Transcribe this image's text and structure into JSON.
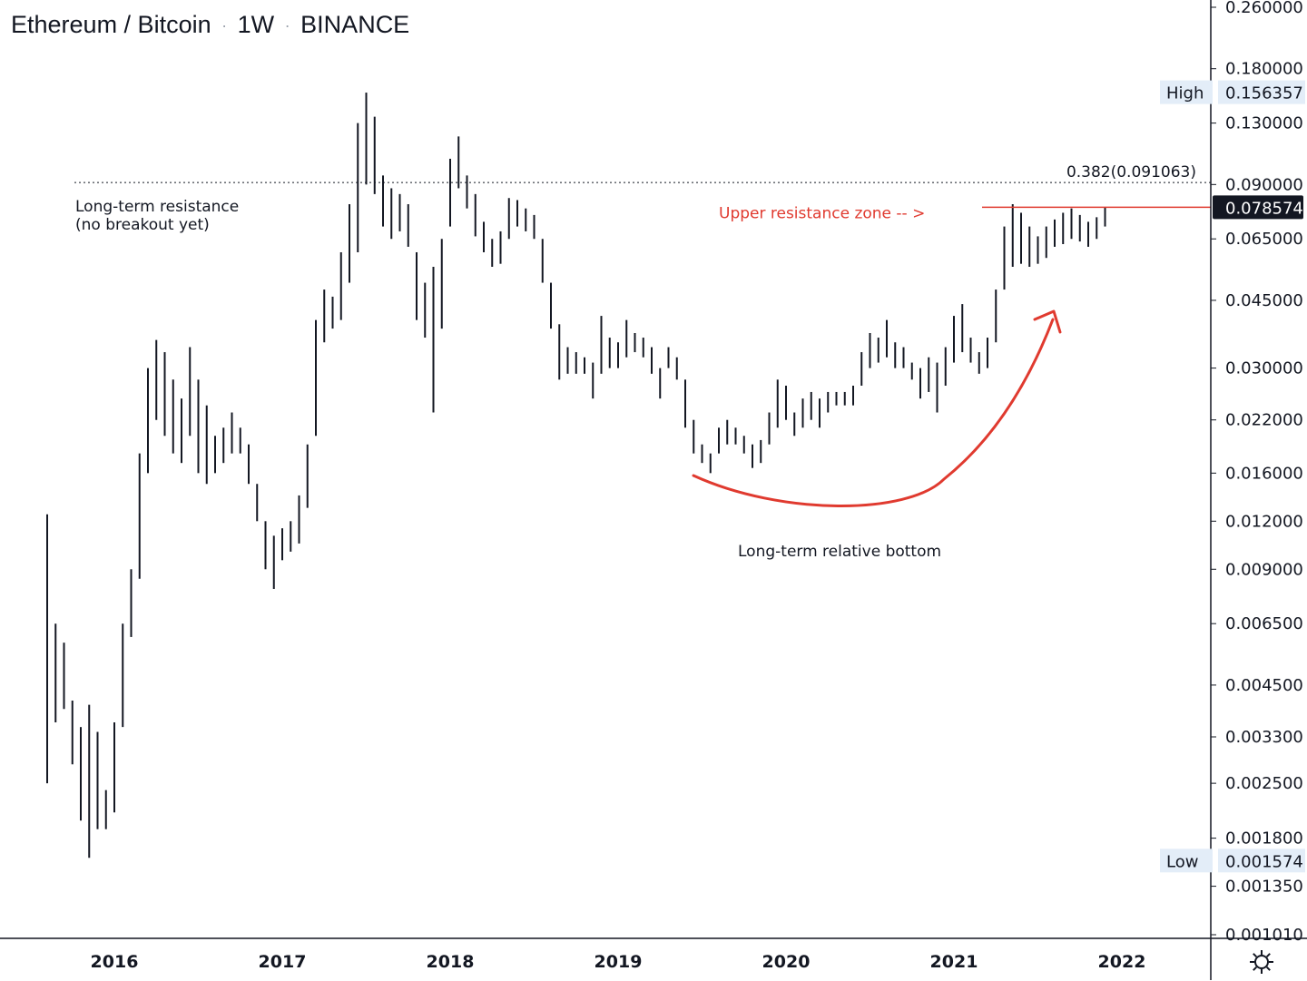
{
  "header": {
    "symbol": "Ethereum / Bitcoin",
    "interval": "1W",
    "exchange": "BINANCE",
    "separator": "·"
  },
  "colors": {
    "bars": "#131722",
    "accent_red": "#e03a2f",
    "axis_line": "#131722",
    "marker_bg": "#e3edf8",
    "price_tag_bg": "#131722"
  },
  "settings": {
    "icon": "settings-icon"
  },
  "chart_data": {
    "type": "ohlc",
    "scale": "log",
    "x_unit": "year",
    "ylim": [
      0.00101,
      0.26
    ],
    "y_ticks": [
      "0.260000",
      "0.180000",
      "0.130000",
      "0.090000",
      "0.065000",
      "0.045000",
      "0.030000",
      "0.022000",
      "0.016000",
      "0.012000",
      "0.009000",
      "0.006500",
      "0.004500",
      "0.003300",
      "0.002500",
      "0.001800",
      "0.001350",
      "0.001010"
    ],
    "x_ticks": [
      "2016",
      "2017",
      "2018",
      "2019",
      "2020",
      "2021",
      "2022"
    ],
    "markers": {
      "high": {
        "label": "High",
        "value": "0.156357"
      },
      "low": {
        "label": "Low",
        "value": "0.001574"
      },
      "last": {
        "value": "0.078574"
      }
    },
    "annotations": {
      "resistance": "Long-term resistance",
      "resistance_note": "(no breakout yet)",
      "fib": "0.382(0.091063)",
      "upper_zone": "Upper resistance zone -- >",
      "bottom": "Long-term relative bottom"
    },
    "levels": {
      "fib_0382": 0.091063,
      "upper_resistance": 0.078574
    },
    "series": [
      {
        "t": 2015.6,
        "h": 0.0125,
        "l": 0.0025
      },
      {
        "t": 2015.65,
        "h": 0.0065,
        "l": 0.0036
      },
      {
        "t": 2015.7,
        "h": 0.0058,
        "l": 0.0039
      },
      {
        "t": 2015.75,
        "h": 0.0041,
        "l": 0.0028
      },
      {
        "t": 2015.8,
        "h": 0.0035,
        "l": 0.002
      },
      {
        "t": 2015.85,
        "h": 0.004,
        "l": 0.0016
      },
      {
        "t": 2015.9,
        "h": 0.0034,
        "l": 0.0019
      },
      {
        "t": 2015.95,
        "h": 0.0024,
        "l": 0.0019
      },
      {
        "t": 2016.0,
        "h": 0.0036,
        "l": 0.0021
      },
      {
        "t": 2016.05,
        "h": 0.0065,
        "l": 0.0035
      },
      {
        "t": 2016.1,
        "h": 0.009,
        "l": 0.006
      },
      {
        "t": 2016.15,
        "h": 0.018,
        "l": 0.0085
      },
      {
        "t": 2016.2,
        "h": 0.03,
        "l": 0.016
      },
      {
        "t": 2016.25,
        "h": 0.0355,
        "l": 0.022
      },
      {
        "t": 2016.3,
        "h": 0.033,
        "l": 0.02
      },
      {
        "t": 2016.35,
        "h": 0.028,
        "l": 0.018
      },
      {
        "t": 2016.4,
        "h": 0.025,
        "l": 0.017
      },
      {
        "t": 2016.45,
        "h": 0.034,
        "l": 0.02
      },
      {
        "t": 2016.5,
        "h": 0.028,
        "l": 0.016
      },
      {
        "t": 2016.55,
        "h": 0.024,
        "l": 0.015
      },
      {
        "t": 2016.6,
        "h": 0.02,
        "l": 0.016
      },
      {
        "t": 2016.65,
        "h": 0.021,
        "l": 0.017
      },
      {
        "t": 2016.7,
        "h": 0.023,
        "l": 0.018
      },
      {
        "t": 2016.75,
        "h": 0.021,
        "l": 0.018
      },
      {
        "t": 2016.8,
        "h": 0.019,
        "l": 0.015
      },
      {
        "t": 2016.85,
        "h": 0.015,
        "l": 0.012
      },
      {
        "t": 2016.9,
        "h": 0.012,
        "l": 0.009
      },
      {
        "t": 2016.95,
        "h": 0.011,
        "l": 0.008
      },
      {
        "t": 2017.0,
        "h": 0.0115,
        "l": 0.0095
      },
      {
        "t": 2017.05,
        "h": 0.012,
        "l": 0.01
      },
      {
        "t": 2017.1,
        "h": 0.014,
        "l": 0.0105
      },
      {
        "t": 2017.15,
        "h": 0.019,
        "l": 0.013
      },
      {
        "t": 2017.2,
        "h": 0.04,
        "l": 0.02
      },
      {
        "t": 2017.25,
        "h": 0.048,
        "l": 0.035
      },
      {
        "t": 2017.3,
        "h": 0.046,
        "l": 0.038
      },
      {
        "t": 2017.35,
        "h": 0.06,
        "l": 0.04
      },
      {
        "t": 2017.4,
        "h": 0.08,
        "l": 0.05
      },
      {
        "t": 2017.45,
        "h": 0.13,
        "l": 0.06
      },
      {
        "t": 2017.5,
        "h": 0.156,
        "l": 0.09
      },
      {
        "t": 2017.55,
        "h": 0.135,
        "l": 0.085
      },
      {
        "t": 2017.6,
        "h": 0.095,
        "l": 0.07
      },
      {
        "t": 2017.65,
        "h": 0.088,
        "l": 0.065
      },
      {
        "t": 2017.7,
        "h": 0.085,
        "l": 0.068
      },
      {
        "t": 2017.75,
        "h": 0.08,
        "l": 0.062
      },
      {
        "t": 2017.8,
        "h": 0.06,
        "l": 0.04
      },
      {
        "t": 2017.85,
        "h": 0.05,
        "l": 0.036
      },
      {
        "t": 2017.9,
        "h": 0.055,
        "l": 0.023
      },
      {
        "t": 2017.95,
        "h": 0.065,
        "l": 0.038
      },
      {
        "t": 2018.0,
        "h": 0.105,
        "l": 0.07
      },
      {
        "t": 2018.05,
        "h": 0.12,
        "l": 0.088
      },
      {
        "t": 2018.1,
        "h": 0.095,
        "l": 0.078
      },
      {
        "t": 2018.15,
        "h": 0.085,
        "l": 0.066
      },
      {
        "t": 2018.2,
        "h": 0.072,
        "l": 0.06
      },
      {
        "t": 2018.25,
        "h": 0.065,
        "l": 0.055
      },
      {
        "t": 2018.3,
        "h": 0.068,
        "l": 0.056
      },
      {
        "t": 2018.35,
        "h": 0.083,
        "l": 0.065
      },
      {
        "t": 2018.4,
        "h": 0.082,
        "l": 0.07
      },
      {
        "t": 2018.45,
        "h": 0.078,
        "l": 0.068
      },
      {
        "t": 2018.5,
        "h": 0.075,
        "l": 0.065
      },
      {
        "t": 2018.55,
        "h": 0.065,
        "l": 0.05
      },
      {
        "t": 2018.6,
        "h": 0.05,
        "l": 0.038
      },
      {
        "t": 2018.65,
        "h": 0.039,
        "l": 0.028
      },
      {
        "t": 2018.7,
        "h": 0.034,
        "l": 0.029
      },
      {
        "t": 2018.75,
        "h": 0.033,
        "l": 0.029
      },
      {
        "t": 2018.8,
        "h": 0.032,
        "l": 0.029
      },
      {
        "t": 2018.85,
        "h": 0.031,
        "l": 0.025
      },
      {
        "t": 2018.9,
        "h": 0.041,
        "l": 0.029
      },
      {
        "t": 2018.95,
        "h": 0.036,
        "l": 0.03
      },
      {
        "t": 2019.0,
        "h": 0.035,
        "l": 0.03
      },
      {
        "t": 2019.05,
        "h": 0.04,
        "l": 0.032
      },
      {
        "t": 2019.1,
        "h": 0.037,
        "l": 0.033
      },
      {
        "t": 2019.15,
        "h": 0.036,
        "l": 0.032
      },
      {
        "t": 2019.2,
        "h": 0.034,
        "l": 0.029
      },
      {
        "t": 2019.25,
        "h": 0.03,
        "l": 0.025
      },
      {
        "t": 2019.3,
        "h": 0.034,
        "l": 0.03
      },
      {
        "t": 2019.35,
        "h": 0.032,
        "l": 0.028
      },
      {
        "t": 2019.4,
        "h": 0.028,
        "l": 0.021
      },
      {
        "t": 2019.45,
        "h": 0.022,
        "l": 0.018
      },
      {
        "t": 2019.5,
        "h": 0.019,
        "l": 0.017
      },
      {
        "t": 2019.55,
        "h": 0.018,
        "l": 0.016
      },
      {
        "t": 2019.6,
        "h": 0.021,
        "l": 0.018
      },
      {
        "t": 2019.65,
        "h": 0.022,
        "l": 0.019
      },
      {
        "t": 2019.7,
        "h": 0.021,
        "l": 0.019
      },
      {
        "t": 2019.75,
        "h": 0.02,
        "l": 0.018
      },
      {
        "t": 2019.8,
        "h": 0.019,
        "l": 0.0165
      },
      {
        "t": 2019.85,
        "h": 0.0195,
        "l": 0.017
      },
      {
        "t": 2019.9,
        "h": 0.023,
        "l": 0.019
      },
      {
        "t": 2019.95,
        "h": 0.028,
        "l": 0.021
      },
      {
        "t": 2020.0,
        "h": 0.027,
        "l": 0.022
      },
      {
        "t": 2020.05,
        "h": 0.023,
        "l": 0.02
      },
      {
        "t": 2020.1,
        "h": 0.025,
        "l": 0.021
      },
      {
        "t": 2020.15,
        "h": 0.026,
        "l": 0.022
      },
      {
        "t": 2020.2,
        "h": 0.025,
        "l": 0.021
      },
      {
        "t": 2020.25,
        "h": 0.026,
        "l": 0.023
      },
      {
        "t": 2020.3,
        "h": 0.026,
        "l": 0.024
      },
      {
        "t": 2020.35,
        "h": 0.026,
        "l": 0.024
      },
      {
        "t": 2020.4,
        "h": 0.027,
        "l": 0.024
      },
      {
        "t": 2020.45,
        "h": 0.033,
        "l": 0.027
      },
      {
        "t": 2020.5,
        "h": 0.037,
        "l": 0.03
      },
      {
        "t": 2020.55,
        "h": 0.036,
        "l": 0.031
      },
      {
        "t": 2020.6,
        "h": 0.04,
        "l": 0.032
      },
      {
        "t": 2020.65,
        "h": 0.035,
        "l": 0.03
      },
      {
        "t": 2020.7,
        "h": 0.034,
        "l": 0.03
      },
      {
        "t": 2020.75,
        "h": 0.031,
        "l": 0.028
      },
      {
        "t": 2020.8,
        "h": 0.03,
        "l": 0.025
      },
      {
        "t": 2020.85,
        "h": 0.032,
        "l": 0.026
      },
      {
        "t": 2020.9,
        "h": 0.031,
        "l": 0.023
      },
      {
        "t": 2020.95,
        "h": 0.034,
        "l": 0.027
      },
      {
        "t": 2021.0,
        "h": 0.041,
        "l": 0.031
      },
      {
        "t": 2021.05,
        "h": 0.044,
        "l": 0.033
      },
      {
        "t": 2021.1,
        "h": 0.036,
        "l": 0.031
      },
      {
        "t": 2021.15,
        "h": 0.033,
        "l": 0.029
      },
      {
        "t": 2021.2,
        "h": 0.036,
        "l": 0.03
      },
      {
        "t": 2021.25,
        "h": 0.048,
        "l": 0.035
      },
      {
        "t": 2021.3,
        "h": 0.07,
        "l": 0.048
      },
      {
        "t": 2021.35,
        "h": 0.08,
        "l": 0.055
      },
      {
        "t": 2021.4,
        "h": 0.076,
        "l": 0.056
      },
      {
        "t": 2021.45,
        "h": 0.07,
        "l": 0.055
      },
      {
        "t": 2021.5,
        "h": 0.066,
        "l": 0.056
      },
      {
        "t": 2021.55,
        "h": 0.07,
        "l": 0.058
      },
      {
        "t": 2021.6,
        "h": 0.073,
        "l": 0.062
      },
      {
        "t": 2021.65,
        "h": 0.076,
        "l": 0.063
      },
      {
        "t": 2021.7,
        "h": 0.078,
        "l": 0.065
      },
      {
        "t": 2021.75,
        "h": 0.075,
        "l": 0.064
      },
      {
        "t": 2021.8,
        "h": 0.072,
        "l": 0.062
      },
      {
        "t": 2021.85,
        "h": 0.074,
        "l": 0.065
      },
      {
        "t": 2021.9,
        "h": 0.0786,
        "l": 0.07
      }
    ]
  }
}
